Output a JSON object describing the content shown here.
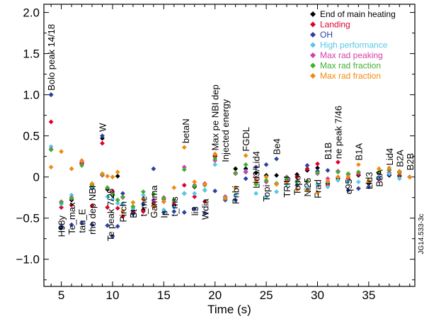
{
  "chart_data": {
    "type": "scatter",
    "title": "",
    "xlabel": "Time (s)",
    "ylabel": "",
    "xlim": [
      3.3,
      39.5
    ],
    "ylim": [
      -1.33,
      2.1
    ],
    "xticks": [
      5,
      10,
      15,
      20,
      25,
      30,
      35
    ],
    "yticks": [
      -1.0,
      -0.5,
      0,
      0.5,
      1.0,
      1.5,
      2.0
    ],
    "xtick_labels": [
      "5",
      "10",
      "15",
      "20",
      "25",
      "30",
      "35"
    ],
    "ytick_labels": [
      "−1.0",
      "−0.5",
      "0",
      "0.5",
      "1.0",
      "1.5",
      "2.0"
    ],
    "grid": false,
    "legend_position": "top-right",
    "figure_id": "JG14.533-3c",
    "marker": "diamond",
    "series": [
      {
        "name": "End of main heating",
        "color": "#000000",
        "points": [
          [
            4,
            1.0
          ],
          [
            5,
            -0.62
          ],
          [
            6,
            -0.28
          ],
          [
            7,
            0.17
          ],
          [
            8,
            -0.13
          ],
          [
            9,
            0.47
          ],
          [
            9.5,
            -0.15
          ],
          [
            10,
            -0.22
          ],
          [
            10.5,
            0.01
          ],
          [
            11,
            -0.33
          ],
          [
            12,
            -0.41
          ],
          [
            13,
            -0.4
          ],
          [
            14,
            -0.35
          ],
          [
            15,
            -0.3
          ],
          [
            16,
            -0.35
          ],
          [
            17,
            -0.2
          ],
          [
            18,
            -0.12
          ],
          [
            19,
            -0.16
          ],
          [
            20,
            0.25
          ],
          [
            21,
            -0.26
          ],
          [
            22,
            0.1
          ],
          [
            23,
            0.1
          ],
          [
            24,
            0.05
          ],
          [
            25,
            0.02
          ],
          [
            26,
            0.02
          ],
          [
            27,
            -0.06
          ],
          [
            28,
            0.03
          ],
          [
            29,
            0.08
          ],
          [
            30,
            0.11
          ],
          [
            31,
            -0.08
          ],
          [
            32,
            -0.02
          ],
          [
            33,
            -0.05
          ],
          [
            34,
            0.02
          ],
          [
            35,
            -0.08
          ],
          [
            36,
            0.04
          ],
          [
            37,
            0.02
          ],
          [
            38,
            0.01
          ],
          [
            39,
            0.0
          ]
        ]
      },
      {
        "name": "Landing",
        "color": "#e0002a",
        "points": [
          [
            4,
            0.67
          ],
          [
            5,
            -0.37
          ],
          [
            6,
            -0.34
          ],
          [
            7,
            0.16
          ],
          [
            8,
            -0.35
          ],
          [
            9,
            0.41
          ],
          [
            9.5,
            -0.37
          ],
          [
            10,
            -0.18
          ],
          [
            10.5,
            -0.38
          ],
          [
            11,
            -0.48
          ],
          [
            12,
            -0.43
          ],
          [
            13,
            -0.42
          ],
          [
            14,
            -0.32
          ],
          [
            15,
            -0.27
          ],
          [
            16,
            -0.33
          ],
          [
            17,
            -0.1
          ],
          [
            18,
            -0.24
          ],
          [
            19,
            -0.3
          ],
          [
            20,
            0.26
          ],
          [
            21,
            -0.24
          ],
          [
            22,
            0.05
          ],
          [
            23,
            0.06
          ],
          [
            24,
            -0.07
          ],
          [
            25,
            -0.06
          ],
          [
            26,
            -0.08
          ],
          [
            27,
            -0.05
          ],
          [
            28,
            0.0
          ],
          [
            29,
            0.1
          ],
          [
            30,
            0.16
          ],
          [
            31,
            -0.1
          ],
          [
            32,
            0.18
          ],
          [
            33,
            -0.02
          ],
          [
            34,
            0.03
          ],
          [
            35,
            -0.05
          ],
          [
            36,
            -0.03
          ],
          [
            37,
            0.05
          ],
          [
            38,
            0.02
          ],
          [
            39,
            0.0
          ]
        ]
      },
      {
        "name": "OH",
        "color": "#2d3fa0",
        "points": [
          [
            4,
            1.0
          ],
          [
            5,
            -0.6
          ],
          [
            6,
            -0.58
          ],
          [
            7,
            -0.56
          ],
          [
            8,
            -0.58
          ],
          [
            9,
            0.5
          ],
          [
            9.5,
            -0.59
          ],
          [
            10,
            -0.72
          ],
          [
            10.5,
            -0.6
          ],
          [
            11,
            -0.2
          ],
          [
            12,
            -0.45
          ],
          [
            13,
            -0.33
          ],
          [
            14,
            0.1
          ],
          [
            15,
            -0.43
          ],
          [
            16,
            -0.42
          ],
          [
            17,
            -0.43
          ],
          [
            18,
            -0.39
          ],
          [
            19,
            -0.44
          ],
          [
            20,
            -0.17
          ],
          [
            21,
            -0.28
          ],
          [
            22,
            -0.28
          ],
          [
            23,
            -0.02
          ],
          [
            24,
            0.12
          ],
          [
            25,
            0.15
          ],
          [
            26,
            0.22
          ],
          [
            27,
            -0.03
          ],
          [
            28,
            -0.1
          ],
          [
            29,
            0.14
          ],
          [
            30,
            0.07
          ],
          [
            31,
            0.08
          ],
          [
            32,
            0.07
          ],
          [
            33,
            -0.16
          ],
          [
            34,
            -0.14
          ],
          [
            35,
            -0.12
          ],
          [
            36,
            -0.02
          ],
          [
            37,
            0.03
          ],
          [
            38,
            0.06
          ],
          [
            39,
            0.0
          ]
        ]
      },
      {
        "name": "High performance",
        "color": "#55c8e8",
        "points": [
          [
            4,
            0.37
          ],
          [
            5,
            -0.33
          ],
          [
            6,
            -0.22
          ],
          [
            7,
            0.2
          ],
          [
            8,
            -0.12
          ],
          [
            9,
            0.03
          ],
          [
            9.5,
            -0.24
          ],
          [
            10,
            -0.27
          ],
          [
            10.5,
            -0.32
          ],
          [
            11,
            -0.33
          ],
          [
            12,
            -0.38
          ],
          [
            13,
            -0.22
          ],
          [
            14,
            -0.29
          ],
          [
            15,
            -0.4
          ],
          [
            16,
            -0.37
          ],
          [
            17,
            -0.2
          ],
          [
            18,
            -0.2
          ],
          [
            19,
            -0.16
          ],
          [
            20,
            0.15
          ],
          [
            21,
            -0.25
          ],
          [
            22,
            -0.22
          ],
          [
            23,
            0.07
          ],
          [
            24,
            -0.2
          ],
          [
            25,
            -0.24
          ],
          [
            26,
            -0.18
          ],
          [
            27,
            -0.09
          ],
          [
            28,
            -0.06
          ],
          [
            29,
            -0.13
          ],
          [
            30,
            -0.09
          ],
          [
            31,
            -0.12
          ],
          [
            32,
            -0.04
          ],
          [
            33,
            -0.05
          ],
          [
            34,
            -0.06
          ],
          [
            35,
            -0.05
          ],
          [
            36,
            0.0
          ],
          [
            37,
            0.04
          ],
          [
            38,
            -0.02
          ],
          [
            39,
            0.0
          ]
        ]
      },
      {
        "name": "Max rad peaking",
        "color": "#d43ea8",
        "points": [
          [
            4,
            0.34
          ],
          [
            5,
            -0.3
          ],
          [
            6,
            -0.25
          ],
          [
            7,
            0.18
          ],
          [
            8,
            -0.09
          ],
          [
            9,
            0.02
          ],
          [
            9.5,
            -0.13
          ],
          [
            10,
            -0.2
          ],
          [
            10.5,
            -0.28
          ],
          [
            11,
            -0.25
          ],
          [
            12,
            -0.36
          ],
          [
            13,
            -0.27
          ],
          [
            14,
            -0.28
          ],
          [
            15,
            -0.25
          ],
          [
            16,
            -0.3
          ],
          [
            17,
            0.12
          ],
          [
            18,
            -0.1
          ],
          [
            19,
            -0.08
          ],
          [
            20,
            0.2
          ],
          [
            21,
            -0.26
          ],
          [
            22,
            0.04
          ],
          [
            23,
            0.06
          ],
          [
            24,
            -0.01
          ],
          [
            25,
            -0.06
          ],
          [
            26,
            -0.08
          ],
          [
            27,
            0.0
          ],
          [
            28,
            -0.05
          ],
          [
            29,
            -0.06
          ],
          [
            30,
            0.04
          ],
          [
            31,
            -0.02
          ],
          [
            32,
            0.07
          ],
          [
            33,
            0.03
          ],
          [
            34,
            0.05
          ],
          [
            35,
            -0.06
          ],
          [
            36,
            0.05
          ],
          [
            37,
            0.08
          ],
          [
            38,
            0.05
          ],
          [
            39,
            0.0
          ]
        ]
      },
      {
        "name": "Max rad fraction",
        "color": "#3fb030",
        "points": [
          [
            4,
            0.33
          ],
          [
            5,
            -0.31
          ],
          [
            6,
            -0.26
          ],
          [
            7,
            0.14
          ],
          [
            8,
            -0.1
          ],
          [
            9,
            0.03
          ],
          [
            9.5,
            -0.13
          ],
          [
            10,
            -0.21
          ],
          [
            10.5,
            -0.28
          ],
          [
            11,
            -0.24
          ],
          [
            12,
            -0.36
          ],
          [
            13,
            -0.18
          ],
          [
            14,
            -0.21
          ],
          [
            15,
            -0.26
          ],
          [
            16,
            -0.28
          ],
          [
            17,
            0.09
          ],
          [
            18,
            -0.11
          ],
          [
            19,
            -0.1
          ],
          [
            20,
            0.22
          ],
          [
            21,
            -0.26
          ],
          [
            22,
            0.05
          ],
          [
            23,
            0.15
          ],
          [
            24,
            -0.09
          ],
          [
            25,
            -0.04
          ],
          [
            26,
            -0.08
          ],
          [
            27,
            -0.01
          ],
          [
            28,
            -0.05
          ],
          [
            29,
            -0.05
          ],
          [
            30,
            0.05
          ],
          [
            31,
            -0.06
          ],
          [
            32,
            0.06
          ],
          [
            33,
            0.04
          ],
          [
            34,
            0.06
          ],
          [
            35,
            -0.06
          ],
          [
            36,
            0.06
          ],
          [
            37,
            0.09
          ],
          [
            38,
            0.05
          ],
          [
            39,
            0.0
          ]
        ]
      },
      {
        "name": "Max rad fraction",
        "color": "#f08a10",
        "points": [
          [
            4,
            0.12
          ],
          [
            5,
            0.31
          ],
          [
            6,
            0.1
          ],
          [
            7,
            0.2
          ],
          [
            8,
            -0.08
          ],
          [
            9,
            0.04
          ],
          [
            9.5,
            0.01
          ],
          [
            10,
            0.0
          ],
          [
            10.5,
            0.06
          ],
          [
            11,
            -0.42
          ],
          [
            12,
            -0.31
          ],
          [
            13,
            -0.27
          ],
          [
            14,
            -0.36
          ],
          [
            15,
            -0.3
          ],
          [
            16,
            -0.13
          ],
          [
            17,
            0.36
          ],
          [
            18,
            -0.06
          ],
          [
            19,
            -0.09
          ],
          [
            20,
            0.28
          ],
          [
            21,
            -0.26
          ],
          [
            22,
            -0.13
          ],
          [
            23,
            0.26
          ],
          [
            24,
            -0.04
          ],
          [
            25,
            0.0
          ],
          [
            26,
            -0.09
          ],
          [
            27,
            -0.06
          ],
          [
            28,
            -0.15
          ],
          [
            29,
            -0.16
          ],
          [
            30,
            -0.19
          ],
          [
            31,
            -0.05
          ],
          [
            32,
            0.0
          ],
          [
            33,
            0.0
          ],
          [
            34,
            0.15
          ],
          [
            35,
            -0.05
          ],
          [
            36,
            0.1
          ],
          [
            37,
            0.11
          ],
          [
            38,
            0.07
          ],
          [
            39,
            0.0
          ]
        ]
      }
    ],
    "annotations": [
      {
        "text": "Bolo peak 14/18",
        "x": 4,
        "y": 1.05
      },
      {
        "text": "H98y",
        "x": 5,
        "y": -0.73
      },
      {
        "text": "Te_max",
        "x": 6,
        "y": -0.7
      },
      {
        "text": "tau_E",
        "x": 7,
        "y": -0.68
      },
      {
        "text": "rho dep NBI",
        "x": 8,
        "y": -0.7
      },
      {
        "text": "W",
        "x": 9,
        "y": 0.55
      },
      {
        "text": "Te peak 7/25",
        "x": 9.8,
        "y": -0.78
      },
      {
        "text": "Pirch",
        "x": 11,
        "y": -0.55
      },
      {
        "text": "Bt",
        "x": 12,
        "y": -0.5
      },
      {
        "text": "t_me",
        "x": 13,
        "y": -0.48
      },
      {
        "text": "Gamma",
        "x": 14,
        "y": -0.5
      },
      {
        "text": "Ip",
        "x": 15,
        "y": -0.5
      },
      {
        "text": "t_ms",
        "x": 16,
        "y": -0.48
      },
      {
        "text": "betaN",
        "x": 17.1,
        "y": 0.41
      },
      {
        "text": "li3",
        "x": 18,
        "y": -0.47
      },
      {
        "text": "Wdia",
        "x": 19,
        "y": -0.52
      },
      {
        "text": "Max pe NBI dep",
        "x": 20,
        "y": 0.32
      },
      {
        "text": "Injected energy",
        "x": 21,
        "y": 0.18
      },
      {
        "text": "Pnbi",
        "x": 22,
        "y": -0.33
      },
      {
        "text": "FGDL",
        "x": 23,
        "y": 0.31
      },
      {
        "text": "Lid3/Lid4",
        "x": 24,
        "y": -0.14
      },
      {
        "text": "Topi",
        "x": 25,
        "y": -0.3
      },
      {
        "text": "Be4",
        "x": 26,
        "y": 0.27
      },
      {
        "text": "TRIU",
        "x": 27,
        "y": -0.25
      },
      {
        "text": "Topo",
        "x": 28,
        "y": -0.22
      },
      {
        "text": "Ni25",
        "x": 29,
        "y": -0.24
      },
      {
        "text": "Frad",
        "x": 30,
        "y": -0.26
      },
      {
        "text": "B1B",
        "x": 31,
        "y": 0.21
      },
      {
        "text": "ne peak 7/46",
        "x": 32,
        "y": 0.22
      },
      {
        "text": "q95",
        "x": 33,
        "y": -0.21
      },
      {
        "text": "B1A",
        "x": 34,
        "y": 0.2
      },
      {
        "text": "Lid3",
        "x": 35,
        "y": -0.15
      },
      {
        "text": "B3A",
        "x": 36,
        "y": -0.12
      },
      {
        "text": "Lid4",
        "x": 37,
        "y": 0.14
      },
      {
        "text": "B2A",
        "x": 38,
        "y": 0.12
      },
      {
        "text": "B2B",
        "x": 39,
        "y": 0.08
      }
    ]
  }
}
